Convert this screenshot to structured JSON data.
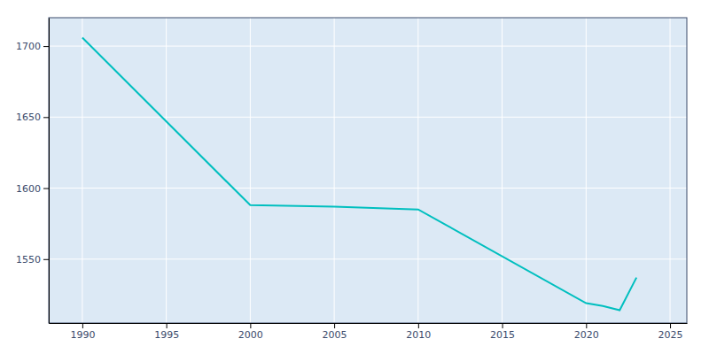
{
  "chart_data": {
    "type": "line",
    "x": [
      1990,
      2000,
      2005,
      2010,
      2020,
      2021,
      2022,
      2023
    ],
    "values": [
      1706,
      1588,
      1587,
      1585,
      1519,
      1517,
      1514,
      1537
    ],
    "color": "#00BFBF",
    "xlim": [
      1988,
      2026
    ],
    "ylim": [
      1505,
      1720
    ],
    "xticks": [
      1990,
      1995,
      2000,
      2005,
      2010,
      2015,
      2020,
      2025
    ],
    "yticks": [
      1550,
      1600,
      1650,
      1700
    ],
    "grid": true
  }
}
